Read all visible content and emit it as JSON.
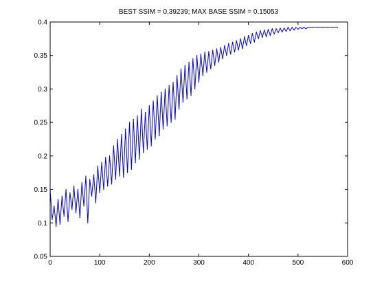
{
  "chart_data": {
    "type": "line",
    "title": "BEST SSIM = 0.39239; MAX BASE SSIM = 0.15053",
    "xlabel": "",
    "ylabel": "",
    "xlim": [
      0,
      600
    ],
    "ylim": [
      0.05,
      0.4
    ],
    "xticks": [
      0,
      100,
      200,
      300,
      400,
      500,
      600
    ],
    "xtick_labels": [
      "0",
      "100",
      "200",
      "300",
      "400",
      "500",
      "600"
    ],
    "yticks": [
      0.05,
      0.1,
      0.15,
      0.2,
      0.25,
      0.3,
      0.35,
      0.4
    ],
    "ytick_labels": [
      "0.05",
      "0.1",
      "0.15",
      "0.2",
      "0.25",
      "0.3",
      "0.35",
      "0.4"
    ],
    "grid": false,
    "line_color": "#0000ff",
    "series": [
      {
        "x": [
          0,
          4,
          8,
          12,
          16,
          20,
          24,
          28,
          32,
          36,
          40,
          44,
          48,
          52,
          56,
          60,
          64,
          68,
          72,
          76,
          80,
          84,
          88,
          92,
          96,
          100,
          104,
          108,
          112,
          116,
          120,
          124,
          128,
          132,
          136,
          140,
          144,
          148,
          152,
          156,
          160,
          164,
          168,
          172,
          176,
          180,
          184,
          188,
          192,
          196,
          200,
          204,
          208,
          212,
          216,
          220,
          224,
          228,
          232,
          236,
          240,
          244,
          248,
          252,
          256,
          260,
          264,
          268,
          272,
          276,
          280,
          284,
          288,
          292,
          296,
          300,
          304,
          308,
          312,
          316,
          320,
          324,
          328,
          332,
          336,
          340,
          344,
          348,
          352,
          356,
          360,
          364,
          368,
          372,
          376,
          380,
          384,
          388,
          392,
          396,
          400,
          404,
          408,
          412,
          416,
          420,
          424,
          428,
          432,
          436,
          440,
          444,
          448,
          452,
          456,
          460,
          464,
          468,
          472,
          476,
          480,
          484,
          488,
          492,
          496,
          500,
          504,
          508,
          512,
          516,
          520,
          530,
          540,
          550,
          560,
          570,
          580
        ],
        "y": [
          0.15,
          0.105,
          0.125,
          0.095,
          0.135,
          0.098,
          0.14,
          0.11,
          0.15,
          0.102,
          0.145,
          0.12,
          0.155,
          0.115,
          0.15,
          0.108,
          0.16,
          0.125,
          0.17,
          0.1,
          0.165,
          0.14,
          0.172,
          0.13,
          0.185,
          0.145,
          0.19,
          0.15,
          0.198,
          0.155,
          0.2,
          0.158,
          0.215,
          0.165,
          0.225,
          0.17,
          0.232,
          0.168,
          0.24,
          0.175,
          0.25,
          0.18,
          0.255,
          0.19,
          0.26,
          0.195,
          0.27,
          0.205,
          0.265,
          0.21,
          0.275,
          0.215,
          0.282,
          0.225,
          0.29,
          0.23,
          0.295,
          0.24,
          0.3,
          0.245,
          0.305,
          0.25,
          0.31,
          0.255,
          0.32,
          0.27,
          0.33,
          0.28,
          0.335,
          0.285,
          0.34,
          0.29,
          0.345,
          0.3,
          0.35,
          0.31,
          0.352,
          0.32,
          0.355,
          0.325,
          0.356,
          0.33,
          0.358,
          0.335,
          0.36,
          0.34,
          0.362,
          0.345,
          0.365,
          0.35,
          0.368,
          0.352,
          0.37,
          0.355,
          0.372,
          0.358,
          0.375,
          0.36,
          0.378,
          0.365,
          0.38,
          0.368,
          0.383,
          0.37,
          0.385,
          0.375,
          0.387,
          0.377,
          0.388,
          0.378,
          0.389,
          0.38,
          0.39,
          0.382,
          0.39,
          0.384,
          0.391,
          0.385,
          0.391,
          0.386,
          0.392,
          0.387,
          0.392,
          0.388,
          0.392,
          0.389,
          0.392,
          0.39,
          0.392,
          0.39,
          0.392,
          0.392,
          0.392,
          0.392,
          0.392,
          0.392,
          0.392
        ]
      }
    ]
  }
}
